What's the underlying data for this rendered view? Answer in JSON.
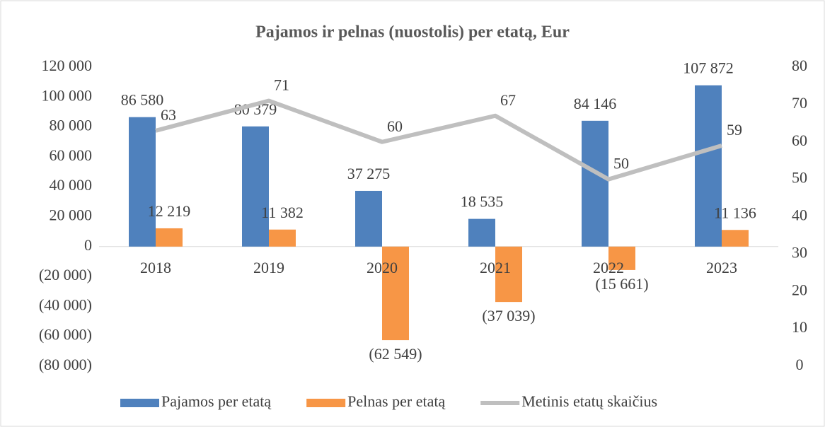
{
  "chart_data": {
    "type": "bar-line",
    "title": "Pajamos ir pelnas (nuostolis) per etatą, Eur",
    "categories": [
      "2018",
      "2019",
      "2020",
      "2021",
      "2022",
      "2023"
    ],
    "series": [
      {
        "name": "Pajamos per etatą",
        "color": "#4f81bd",
        "type": "bar",
        "values": [
          86580,
          80379,
          37275,
          18535,
          84146,
          107872
        ],
        "value_labels": [
          "86 580",
          "80 379",
          "37 275",
          "18 535",
          "84 146",
          "107 872"
        ]
      },
      {
        "name": "Pelnas per etatą",
        "color": "#f79646",
        "type": "bar",
        "values": [
          12219,
          11382,
          -62549,
          -37039,
          -15661,
          11136
        ],
        "value_labels": [
          "12 219",
          "11 382",
          "(62 549)",
          "(37 039)",
          "(15 661)",
          "11 136"
        ]
      },
      {
        "name": "Metinis etatų skaičius",
        "color": "#bfbfbf",
        "type": "line",
        "axis": "y2",
        "values": [
          63,
          71,
          60,
          67,
          50,
          59
        ]
      }
    ],
    "ylim": [
      -80000,
      120000
    ],
    "yticks": [
      {
        "value": -80000,
        "label": "(80 000)"
      },
      {
        "value": -60000,
        "label": "(60 000)"
      },
      {
        "value": -40000,
        "label": "(40 000)"
      },
      {
        "value": -20000,
        "label": "(20 000)"
      },
      0,
      {
        "value": 20000,
        "label": "20 000"
      },
      {
        "value": 40000,
        "label": "40 000"
      },
      {
        "value": 60000,
        "label": "60 000"
      },
      {
        "value": 80000,
        "label": "80 000"
      },
      {
        "value": 100000,
        "label": "100 000"
      },
      {
        "value": 120000,
        "label": "120 000"
      }
    ],
    "y2lim": [
      0,
      80
    ],
    "y2ticks": [
      0,
      10,
      20,
      30,
      40,
      50,
      60,
      70,
      80
    ],
    "legend": "bottom"
  }
}
